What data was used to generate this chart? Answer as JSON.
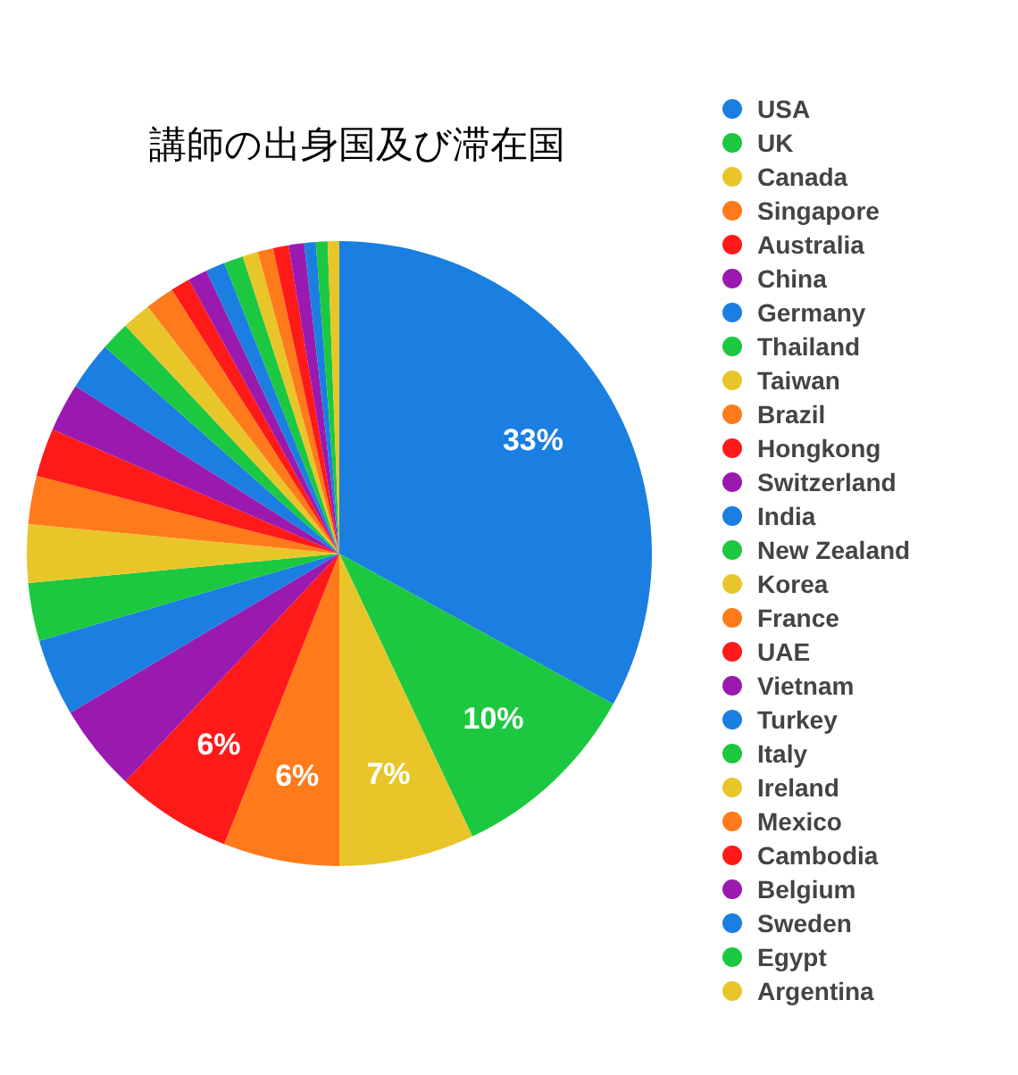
{
  "chart_data": {
    "type": "pie",
    "title": "講師の出身国及び滞在国",
    "categories": [
      "USA",
      "UK",
      "Canada",
      "Singapore",
      "Australia",
      "China",
      "Germany",
      "Thailand",
      "Taiwan",
      "Brazil",
      "Hongkong",
      "Switzerland",
      "India",
      "New Zealand",
      "Korea",
      "France",
      "UAE",
      "Vietnam",
      "Turkey",
      "Italy",
      "Ireland",
      "Mexico",
      "Cambodia",
      "Belgium",
      "Sweden",
      "Egypt",
      "Argentina"
    ],
    "values": [
      33,
      10,
      7,
      6,
      6,
      4.5,
      4,
      3,
      3,
      2.5,
      2.5,
      2.5,
      2.5,
      1.5,
      1.5,
      1.5,
      1,
      1,
      1,
      1,
      0.8,
      0.8,
      0.8,
      0.8,
      0.6,
      0.6,
      0.6
    ],
    "colors": [
      "#1a7fe0",
      "#1cc840",
      "#e8c62a",
      "#ff7a1a",
      "#ff1a1a",
      "#9a1ab0",
      "#1a7fe0",
      "#1cc840",
      "#e8c62a",
      "#ff7a1a",
      "#ff1a1a",
      "#9a1ab0",
      "#1a7fe0",
      "#1cc840",
      "#e8c62a",
      "#ff7a1a",
      "#ff1a1a",
      "#9a1ab0",
      "#1a7fe0",
      "#1cc840",
      "#e8c62a",
      "#ff7a1a",
      "#ff1a1a",
      "#9a1ab0",
      "#1a7fe0",
      "#1cc840",
      "#e8c62a"
    ],
    "value_labels": [
      "33%",
      "10%",
      "7%",
      "6%",
      "6%",
      null,
      null,
      null,
      null,
      null,
      null,
      null,
      null,
      null,
      null,
      null,
      null,
      null,
      null,
      null,
      null,
      null,
      null,
      null,
      null,
      null,
      null
    ],
    "legend": "right"
  }
}
